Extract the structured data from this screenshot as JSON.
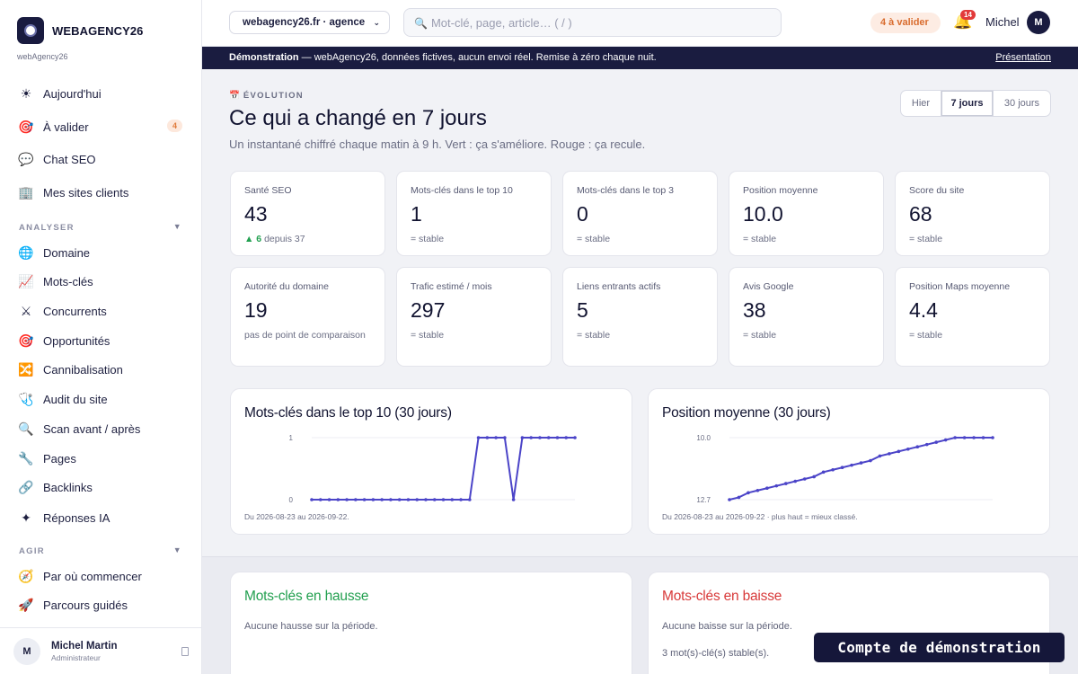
{
  "brand": {
    "name": "WEBAGENCY26",
    "subtitle": "webAgency26"
  },
  "sidebar": {
    "primary": [
      {
        "label": "Aujourd'hui",
        "icon": "☀"
      },
      {
        "label": "À valider",
        "icon": "🎯",
        "badge": "4"
      },
      {
        "label": "Chat SEO",
        "icon": "💬"
      },
      {
        "label": "Mes sites clients",
        "icon": "🏢"
      }
    ],
    "sections": [
      {
        "title": "ANALYSER",
        "items": [
          {
            "label": "Domaine",
            "icon": "🌐"
          },
          {
            "label": "Mots-clés",
            "icon": "📈"
          },
          {
            "label": "Concurrents",
            "icon": "⚔"
          },
          {
            "label": "Opportunités",
            "icon": "🎯"
          },
          {
            "label": "Cannibalisation",
            "icon": "🔀"
          },
          {
            "label": "Audit du site",
            "icon": "🩺"
          },
          {
            "label": "Scan avant / après",
            "icon": "🔍"
          },
          {
            "label": "Pages",
            "icon": "🔧"
          },
          {
            "label": "Backlinks",
            "icon": "🔗"
          },
          {
            "label": "Réponses IA",
            "icon": "✦"
          }
        ]
      },
      {
        "title": "AGIR",
        "items": [
          {
            "label": "Par où commencer",
            "icon": "🧭"
          },
          {
            "label": "Parcours guidés",
            "icon": "🚀"
          }
        ]
      }
    ],
    "user": {
      "initial": "M",
      "name": "Michel Martin",
      "role": "Administrateur"
    }
  },
  "topbar": {
    "site_select": "webagency26.fr · agence",
    "search_placeholder": "Mot-clé, page, article…  ( / )",
    "to_validate": "4  à valider",
    "notifications": "14",
    "user_name": "Michel",
    "user_initial": "M"
  },
  "banner": {
    "bold": "Démonstration",
    "text": " — webAgency26, données fictives, aucun envoi réel. Remise à zéro chaque nuit.",
    "link": "Présentation"
  },
  "header": {
    "kicker": "ÉVOLUTION",
    "kicker_icon": "📅",
    "title": "Ce qui a changé en 7 jours",
    "subtitle": "Un instantané chiffré chaque matin à 9 h. Vert : ça s'améliore. Rouge : ça recule.",
    "periods": [
      "Hier",
      "7 jours",
      "30 jours"
    ],
    "selected_period": "7 jours"
  },
  "kpis": [
    {
      "label": "Santé SEO",
      "value": "43",
      "delta": "▲ 6",
      "sub": " depuis 37"
    },
    {
      "label": "Mots-clés dans le top 10",
      "value": "1",
      "sub": "= stable"
    },
    {
      "label": "Mots-clés dans le top 3",
      "value": "0",
      "sub": "= stable"
    },
    {
      "label": "Position moyenne",
      "value": "10.0",
      "sub": "= stable"
    },
    {
      "label": "Score du site",
      "value": "68",
      "sub": "= stable"
    },
    {
      "label": "Autorité du domaine",
      "value": "19",
      "sub": "pas de point de comparaison"
    },
    {
      "label": "Trafic estimé / mois",
      "value": "297",
      "sub": "= stable"
    },
    {
      "label": "Liens entrants actifs",
      "value": "5",
      "sub": "= stable"
    },
    {
      "label": "Avis Google",
      "value": "38",
      "sub": "= stable"
    },
    {
      "label": "Position Maps moyenne",
      "value": "4.4",
      "sub": "= stable"
    }
  ],
  "charts": {
    "top10": {
      "title": "Mots-clés dans le top 10 (30 jours)",
      "note": "Du 2026-08-23 au 2026-09-22.",
      "y_top_label": "1",
      "y_bottom_label": "0"
    },
    "position": {
      "title": "Position moyenne (30 jours)",
      "note": "Du 2026-08-23 au 2026-09-22 · plus haut = mieux classé.",
      "y_top_label": "10.0",
      "y_bottom_label": "12.7"
    }
  },
  "chart_data": [
    {
      "type": "line",
      "title": "Mots-clés dans le top 10 (30 jours)",
      "x_range": [
        "2026-08-23",
        "2026-09-22"
      ],
      "ylim": [
        0,
        1
      ],
      "series": [
        {
          "values": [
            0,
            0,
            0,
            0,
            0,
            0,
            0,
            0,
            0,
            0,
            0,
            0,
            0,
            0,
            0,
            0,
            0,
            0,
            0,
            1,
            1,
            1,
            1,
            0,
            1,
            1,
            1,
            1,
            1,
            1,
            1
          ]
        }
      ],
      "color": "#4b44c8",
      "grid": true
    },
    {
      "type": "line",
      "title": "Position moyenne (30 jours)",
      "x_range": [
        "2026-08-23",
        "2026-09-22"
      ],
      "ylim": [
        12.7,
        10.0
      ],
      "y_inverted": true,
      "series": [
        {
          "values": [
            12.7,
            12.6,
            12.4,
            12.3,
            12.2,
            12.1,
            12.0,
            11.9,
            11.8,
            11.7,
            11.5,
            11.4,
            11.3,
            11.2,
            11.1,
            11.0,
            10.8,
            10.7,
            10.6,
            10.5,
            10.4,
            10.3,
            10.2,
            10.1,
            10.0,
            10.0,
            10.0,
            10.0,
            10.0
          ]
        }
      ],
      "color": "#4b44c8",
      "grid": true
    }
  ],
  "movements": {
    "up": {
      "title": "Mots-clés en hausse",
      "text": "Aucune hausse sur la période."
    },
    "down": {
      "title": "Mots-clés en baisse",
      "text": "Aucune baisse sur la période.",
      "text2": "3 mot(s)-clé(s) stable(s)."
    }
  },
  "demo_toast": "Compte de démonstration",
  "colors": {
    "accent": "#4b44c8",
    "navy": "#1a1c40",
    "up": "#23a050",
    "down": "#d83a3a",
    "warn": "#d96c2e"
  }
}
